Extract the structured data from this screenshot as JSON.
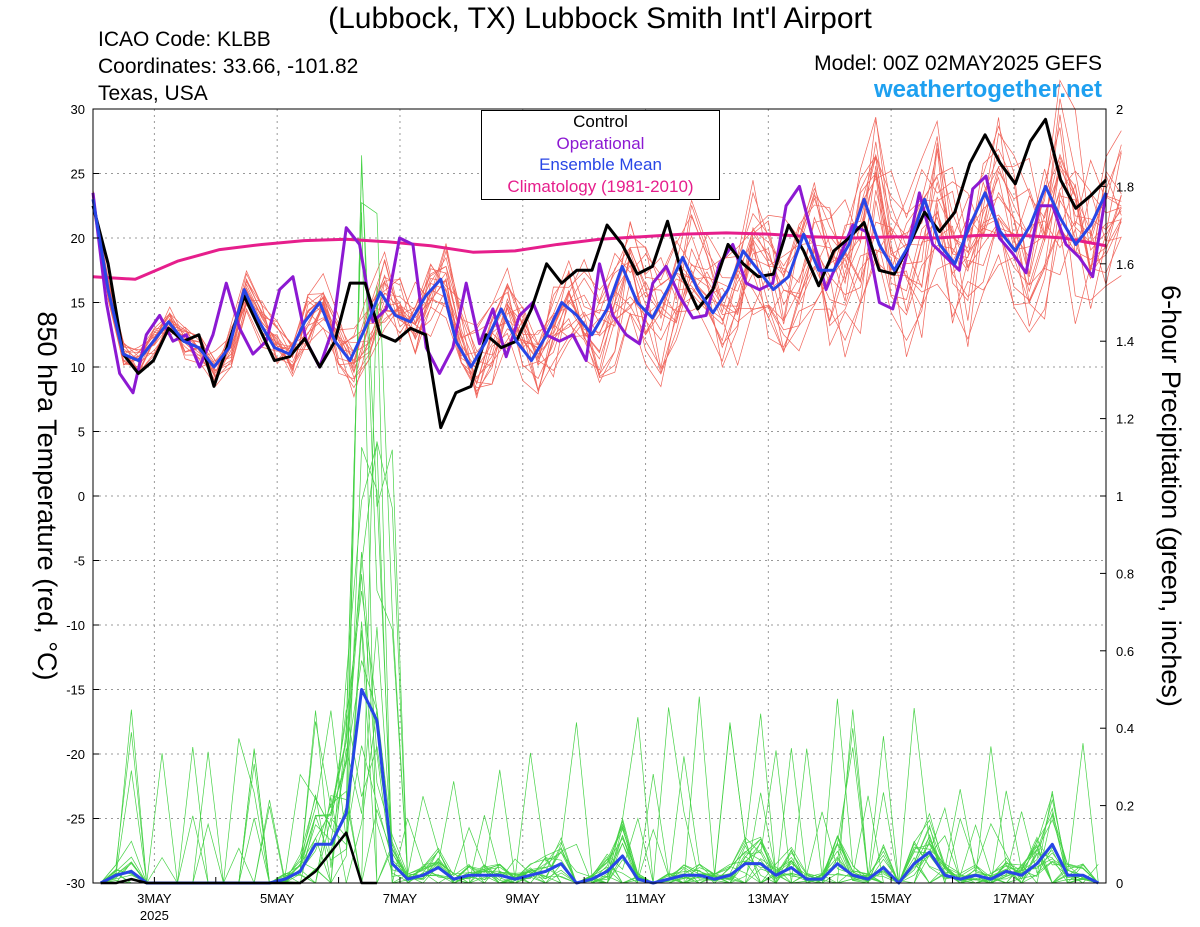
{
  "header": {
    "title": "(Lubbock, TX) Lubbock Smith Int'l Airport",
    "icao": "ICAO Code: KLBB",
    "coordinates": "Coordinates: 33.66, -101.82",
    "region": "Texas, USA",
    "model": "Model: 00Z 02MAY2025 GEFS",
    "website": "weathertogether.net"
  },
  "colors": {
    "members_temp": "#f0645a",
    "members_precip": "#46d246",
    "control": "#000000",
    "operational": "#8c19d2",
    "ensemble_mean": "#2846e6",
    "climatology": "#e61e8c",
    "website": "#1ea0f0"
  },
  "chart_data": {
    "type": "line",
    "title": "(Lubbock, TX) Lubbock Smith Int'l Airport",
    "ylabel": "850 hPa Temperature (red, °C)",
    "y2label": "6-hour Precipitation (green, inches)",
    "ylim": [
      -30,
      30
    ],
    "y2lim": [
      0,
      2
    ],
    "yticks": [
      "30",
      "25",
      "20",
      "15",
      "10",
      "5",
      "0",
      "-5",
      "-10",
      "-15",
      "-20",
      "-25",
      "-30"
    ],
    "y2ticks": [
      "2",
      "1.8",
      "1.6",
      "1.4",
      "1.2",
      "1",
      "0.8",
      "0.6",
      "0.4",
      "0.2",
      "0"
    ],
    "xticks": [
      "3MAY",
      "5MAY",
      "7MAY",
      "9MAY",
      "11MAY",
      "13MAY",
      "15MAY",
      "17MAY"
    ],
    "xsub": "2025",
    "x_start": "2025-05-02T00Z",
    "step_hours": 6,
    "grid": true,
    "legend": {
      "position": "top-center",
      "entries": [
        "Control",
        "Operational",
        "Ensemble Mean",
        "Climatology (1981-2010)"
      ]
    },
    "series": [
      {
        "name": "Control",
        "axis": "temp",
        "values": [
          22.5,
          18.0,
          11.0,
          9.5,
          10.5,
          13.0,
          12.0,
          12.5,
          8.5,
          12.0,
          15.5,
          13.0,
          10.5,
          10.8,
          12.2,
          10.0,
          12.0,
          16.5,
          16.5,
          12.5,
          12.0,
          13.0,
          12.5,
          5.3,
          8.0,
          8.5,
          12.5,
          11.5,
          12.0,
          14.5,
          18.0,
          16.5,
          17.5,
          17.5,
          21.0,
          19.5,
          17.2,
          17.8,
          21.3,
          17.0,
          14.5,
          16.0,
          19.5,
          18.0,
          17.0,
          17.2,
          21.0,
          19.0,
          16.3,
          19.0,
          20.0,
          21.2,
          17.5,
          17.2,
          19.5,
          22.0,
          20.5,
          22.0,
          25.8,
          28.0,
          25.8,
          24.2,
          27.5,
          29.2,
          24.5,
          22.3,
          23.3,
          24.5
        ]
      },
      {
        "name": "Operational",
        "axis": "temp",
        "values": [
          23.5,
          15.0,
          9.5,
          8.0,
          12.5,
          14.0,
          12.0,
          12.5,
          10.0,
          12.5,
          16.5,
          13.0,
          11.0,
          12.0,
          16.0,
          17.0,
          12.0,
          10.0,
          13.0,
          20.8,
          19.5,
          13.5,
          14.5,
          20.0,
          19.5,
          11.5,
          9.5,
          11.5,
          16.5,
          11.8,
          14.5,
          10.8,
          14.0,
          15.0,
          12.5,
          12.0,
          12.5,
          10.5,
          18.0,
          14.0,
          12.5,
          11.8,
          16.5,
          17.8,
          15.5,
          13.8,
          14.0,
          18.0,
          19.5,
          16.5,
          16.0,
          16.5,
          22.5,
          24.0,
          20.0,
          16.0,
          18.5,
          21.0,
          20.5,
          15.0,
          14.5,
          18.5,
          23.5,
          19.5,
          18.5,
          17.5,
          23.8,
          24.8,
          20.0,
          18.8,
          17.3,
          22.5,
          22.5,
          19.5,
          18.5,
          17.0,
          23.5
        ]
      },
      {
        "name": "Ensemble Mean",
        "axis": "temp",
        "values": [
          23.0,
          16.0,
          11.0,
          10.5,
          12.0,
          13.5,
          12.0,
          11.5,
          10.0,
          11.5,
          16.0,
          13.5,
          11.5,
          11.0,
          13.5,
          15.0,
          12.0,
          10.5,
          13.0,
          15.8,
          14.0,
          13.5,
          15.5,
          16.8,
          12.0,
          10.0,
          12.0,
          14.5,
          12.0,
          10.5,
          12.5,
          15.0,
          14.0,
          12.5,
          14.5,
          17.8,
          15.0,
          13.8,
          16.0,
          18.5,
          16.0,
          14.2,
          16.0,
          19.0,
          17.5,
          16.0,
          17.0,
          20.3,
          17.5,
          17.5,
          19.5,
          23.0,
          19.5,
          17.5,
          19.5,
          23.0,
          19.5,
          18.0,
          21.0,
          23.5,
          20.5,
          19.0,
          21.0,
          24.0,
          21.5,
          19.5,
          21.0,
          23.5
        ]
      },
      {
        "name": "Climatology (1981-2010)",
        "axis": "temp",
        "values": [
          17.0,
          16.8,
          18.2,
          19.1,
          19.5,
          19.8,
          19.9,
          19.7,
          19.4,
          18.9,
          19.0,
          19.5,
          19.9,
          20.1,
          20.3,
          20.4,
          20.3,
          20.1,
          20.0,
          20.1,
          20.0,
          20.2,
          20.2,
          20.0,
          19.4
        ]
      },
      {
        "name": "Ensemble Mean",
        "axis": "precip",
        "values": [
          0,
          0.02,
          0.03,
          0,
          0,
          0,
          0,
          0,
          0,
          0,
          0,
          0,
          0.01,
          0.03,
          0.1,
          0.1,
          0.18,
          0.5,
          0.42,
          0.05,
          0.01,
          0.02,
          0.04,
          0.01,
          0.02,
          0.02,
          0.02,
          0.01,
          0.02,
          0.03,
          0.05,
          0.0,
          0.01,
          0.03,
          0.07,
          0.01,
          0.0,
          0.01,
          0.02,
          0.02,
          0.01,
          0.02,
          0.05,
          0.05,
          0.02,
          0.04,
          0.01,
          0.01,
          0.05,
          0.02,
          0.01,
          0.04,
          0.0,
          0.05,
          0.08,
          0.02,
          0.01,
          0.02,
          0.01,
          0.03,
          0.02,
          0.05,
          0.1,
          0.02,
          0.02,
          0.0
        ]
      },
      {
        "name": "Control",
        "axis": "precip",
        "values": [
          0,
          0,
          0.01,
          0,
          0,
          0,
          0,
          0,
          0,
          0,
          0,
          0,
          0,
          0,
          0.03,
          0.08,
          0.13,
          0.0,
          0.0
        ]
      }
    ]
  }
}
